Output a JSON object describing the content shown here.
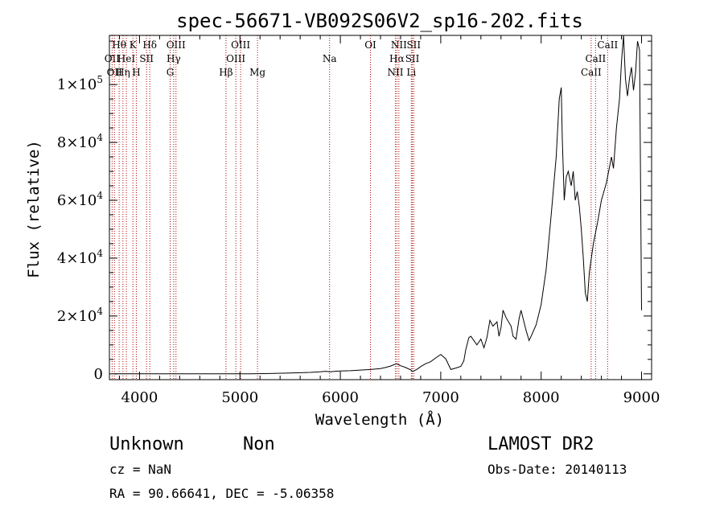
{
  "chart_data": {
    "type": "line",
    "title": "spec-56671-VB092S06V2_sp16-202.fits",
    "xlabel": "Wavelength (Å)",
    "ylabel": "Flux (relative)",
    "xlim": [
      3700,
      9100
    ],
    "ylim": [
      -2000,
      117000
    ],
    "grid": false,
    "x_ticks": [
      4000,
      5000,
      6000,
      7000,
      8000,
      9000
    ],
    "x_tick_labels": [
      "4000",
      "5000",
      "6000",
      "7000",
      "8000",
      "9000"
    ],
    "y_ticks": [
      0,
      20000,
      40000,
      60000,
      80000,
      100000
    ],
    "y_tick_labels": [
      {
        "mantissa": "0",
        "exp": ""
      },
      {
        "mantissa": "2×10",
        "exp": "4"
      },
      {
        "mantissa": "4×10",
        "exp": "4"
      },
      {
        "mantissa": "6×10",
        "exp": "4"
      },
      {
        "mantissa": "8×10",
        "exp": "4"
      },
      {
        "mantissa": "1×10",
        "exp": "5"
      }
    ],
    "spectral_lines": [
      {
        "wavelength": 3727,
        "label": "OII",
        "row": 2
      },
      {
        "wavelength": 3750,
        "label": "OII",
        "row": 3
      },
      {
        "wavelength": 3797,
        "label": "Hθ",
        "row": 1
      },
      {
        "wavelength": 3835,
        "label": "Hη",
        "row": 3
      },
      {
        "wavelength": 3869,
        "label": "HeI",
        "row": 2
      },
      {
        "wavelength": 3934,
        "label": "K",
        "row": 1
      },
      {
        "wavelength": 3968,
        "label": "H",
        "row": 3
      },
      {
        "wavelength": 4070,
        "label": "SII",
        "row": 2
      },
      {
        "wavelength": 4102,
        "label": "Hδ",
        "row": 1
      },
      {
        "wavelength": 4305,
        "label": "G",
        "row": 3
      },
      {
        "wavelength": 4340,
        "label": "Hγ",
        "row": 2
      },
      {
        "wavelength": 4363,
        "label": "OIII",
        "row": 1
      },
      {
        "wavelength": 4861,
        "label": "Hβ",
        "row": 3
      },
      {
        "wavelength": 4959,
        "label": "OIII",
        "row": 2
      },
      {
        "wavelength": 5007,
        "label": "OIII",
        "row": 1
      },
      {
        "wavelength": 5175,
        "label": "Mg",
        "row": 3
      },
      {
        "wavelength": 5893,
        "label": "Na",
        "row": 2
      },
      {
        "wavelength": 6300,
        "label": "OI",
        "row": 1
      },
      {
        "wavelength": 6548,
        "label": "NII",
        "row": 3
      },
      {
        "wavelength": 6563,
        "label": "Hα",
        "row": 2
      },
      {
        "wavelength": 6583,
        "label": "NII",
        "row": 1
      },
      {
        "wavelength": 6707,
        "label": "Li",
        "row": 3
      },
      {
        "wavelength": 6717,
        "label": "SII",
        "row": 2
      },
      {
        "wavelength": 6731,
        "label": "SII",
        "row": 1
      },
      {
        "wavelength": 8498,
        "label": "CaII",
        "row": 3
      },
      {
        "wavelength": 8542,
        "label": "CaII",
        "row": 2
      },
      {
        "wavelength": 8662,
        "label": "CaII",
        "row": 1
      }
    ],
    "series": [
      {
        "x": [
          3750,
          3900,
          4100,
          4300,
          4500,
          4700,
          4900,
          5100,
          5300,
          5500,
          5700,
          5800,
          5850,
          5900,
          5950,
          6000,
          6100,
          6200,
          6300,
          6400,
          6450,
          6500,
          6560,
          6600,
          6650,
          6700,
          6720,
          6760,
          6800,
          6850,
          6900,
          6950,
          7000,
          7050,
          7100,
          7150,
          7200,
          7230,
          7250,
          7280,
          7300,
          7330,
          7360,
          7400,
          7430,
          7460,
          7490,
          7520,
          7560,
          7580,
          7600,
          7620,
          7650,
          7700,
          7720,
          7750,
          7780,
          7800,
          7850,
          7880,
          7900,
          7950,
          8000,
          8050,
          8100,
          8150,
          8180,
          8200,
          8210,
          8230,
          8250,
          8270,
          8300,
          8320,
          8340,
          8360,
          8380,
          8400,
          8420,
          8440,
          8460,
          8480,
          8500,
          8520,
          8560,
          8600,
          8650,
          8700,
          8720,
          8750,
          8780,
          8800,
          8820,
          8840,
          8860,
          8880,
          8900,
          8920,
          8940,
          8960,
          8980,
          9000
        ],
        "y": [
          0,
          0,
          0,
          0,
          0,
          0,
          0,
          0,
          100,
          300,
          500,
          700,
          900,
          700,
          900,
          1000,
          1100,
          1300,
          1500,
          1800,
          2200,
          2700,
          3500,
          2800,
          2200,
          1400,
          800,
          1500,
          2500,
          3500,
          4200,
          5500,
          6700,
          5200,
          1500,
          2000,
          2600,
          4500,
          8500,
          12500,
          13000,
          11500,
          10000,
          12000,
          9000,
          12500,
          18500,
          16500,
          18000,
          13000,
          16000,
          22000,
          19500,
          16500,
          13000,
          12000,
          19000,
          22000,
          15000,
          11500,
          13000,
          17000,
          24000,
          36000,
          55000,
          75000,
          95000,
          99000,
          82000,
          60000,
          68000,
          70000,
          65000,
          70000,
          60000,
          63000,
          58000,
          50000,
          40000,
          28000,
          25000,
          35000,
          40000,
          45000,
          52000,
          60000,
          66000,
          75000,
          71000,
          85000,
          95000,
          108000,
          117000,
          102000,
          96000,
          102000,
          106000,
          98000,
          104000,
          115000,
          112000,
          22000
        ]
      }
    ]
  },
  "info": {
    "object_line_left": "Unknown",
    "object_line_right": "Non",
    "survey": "LAMOST DR2",
    "cz": "cz = NaN",
    "obs_date": "Obs-Date: 20140113",
    "coords": "RA =  90.66641, DEC =  -5.06358"
  }
}
